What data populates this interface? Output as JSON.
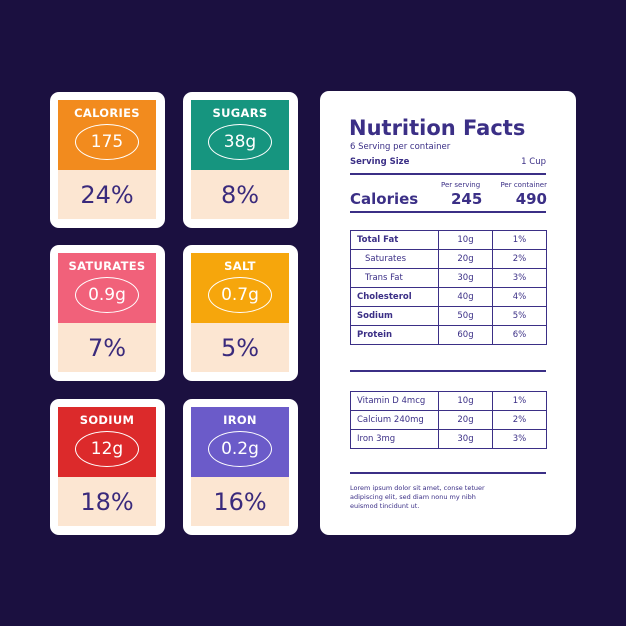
{
  "cards": [
    {
      "label": "CALORIES",
      "amount": "175",
      "percent": "24%",
      "color": "#f28b1e"
    },
    {
      "label": "SUGARS",
      "amount": "38g",
      "percent": "8%",
      "color": "#16957f"
    },
    {
      "label": "SATURATES",
      "amount": "0.9g",
      "percent": "7%",
      "color": "#f1617a"
    },
    {
      "label": "SALT",
      "amount": "0.7g",
      "percent": "5%",
      "color": "#f6a60c"
    },
    {
      "label": "SODIUM",
      "amount": "12g",
      "percent": "18%",
      "color": "#dc2a2b"
    },
    {
      "label": "IRON",
      "amount": "0.2g",
      "percent": "16%",
      "color": "#6b5bc9"
    }
  ],
  "label": {
    "title": "Nutrition Facts",
    "servings": "6 Serving per container",
    "serving_size_label": "Serving Size",
    "serving_size": "1 Cup",
    "per_serving": "Per serving",
    "per_container": "Per container",
    "calories_label": "Calories",
    "calories_serving": "245",
    "calories_container": "490",
    "nutrients": [
      [
        "Total Fat",
        "10g",
        "1%"
      ],
      [
        "Saturates",
        "20g",
        "2%"
      ],
      [
        "Trans Fat",
        "30g",
        "3%"
      ],
      [
        "Cholesterol",
        "40g",
        "4%"
      ],
      [
        "Sodium",
        "50g",
        "5%"
      ],
      [
        "Protein",
        "60g",
        "6%"
      ]
    ],
    "vitamins": [
      [
        "Vitamin D 4mcg",
        "10g",
        "1%"
      ],
      [
        "Calcium  240mg",
        "20g",
        "2%"
      ],
      [
        "Iron 3mg",
        "30g",
        "3%"
      ]
    ],
    "footnote": [
      "Lorem ipsum dolor sit amet, conse tetuer",
      "adipiscing elit, sed diam nonu my nibh",
      "euismod tincidunt ut."
    ]
  }
}
